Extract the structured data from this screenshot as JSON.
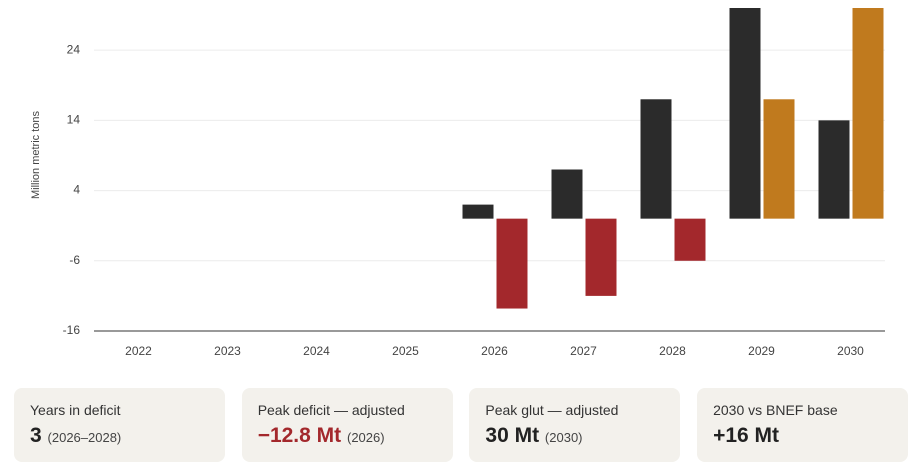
{
  "chart_data": {
    "type": "bar",
    "y_label": "Million metric tons",
    "categories": [
      "2022",
      "2023",
      "2024",
      "2025",
      "2026",
      "2027",
      "2028",
      "2029",
      "2030"
    ],
    "series": [
      {
        "color": "#2b2b2b",
        "values": [
          null,
          null,
          null,
          null,
          2,
          7,
          17,
          30,
          14
        ]
      },
      {
        "color": "#c07a1e",
        "negative_color": "#a3282c",
        "values": [
          null,
          null,
          null,
          null,
          -12.8,
          -11,
          -6,
          17,
          30
        ]
      }
    ],
    "ylim": [
      -16,
      30
    ],
    "yticks": [
      -16,
      -6,
      4,
      14,
      24
    ],
    "grid": true
  },
  "cards": [
    {
      "label": "Years in deficit",
      "value": "3",
      "note": "(2026–2028)"
    },
    {
      "label": "Peak deficit — adjusted",
      "value": "−12.8 Mt",
      "note": "(2026)",
      "accent": "#a3282c"
    },
    {
      "label": "Peak glut — adjusted",
      "value": "30 Mt",
      "note": "(2030)"
    },
    {
      "label": "2030 vs BNEF base",
      "value": "+16 Mt"
    }
  ]
}
